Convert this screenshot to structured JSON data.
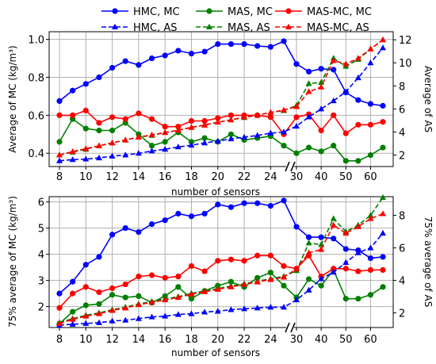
{
  "legend": {
    "items": [
      {
        "label": "HMC, MC",
        "color": "#0000ff",
        "style": "solid",
        "marker": "circle"
      },
      {
        "label": "MAS, MC",
        "color": "#008000",
        "style": "solid",
        "marker": "circle"
      },
      {
        "label": "MAS-MC, MC",
        "color": "#ff0000",
        "style": "solid",
        "marker": "circle"
      },
      {
        "label": "HMC, AS",
        "color": "#0000ff",
        "style": "dashed",
        "marker": "triangle"
      },
      {
        "label": "MAS, AS",
        "color": "#008000",
        "style": "dashed",
        "marker": "triangle"
      },
      {
        "label": "MAS-MC, AS",
        "color": "#ff0000",
        "style": "dashed",
        "marker": "triangle"
      }
    ]
  },
  "colors": {
    "hmc": "#0000ff",
    "mas": "#008000",
    "masmc": "#ff0000",
    "grid": "#b0b0b0"
  },
  "chart_data": [
    {
      "type": "line",
      "xlabel": "number of sensors",
      "ylabel_left": "Average of MC (kg/m³)",
      "ylabel_right": "Average of AS",
      "axis_break": "//",
      "x_tick_labels": [
        "8",
        "10",
        "12",
        "14",
        "16",
        "18",
        "20",
        "22",
        "24",
        "30",
        "40",
        "50",
        "60"
      ],
      "ylim_left": [
        0.33,
        1.04
      ],
      "ylim_right": [
        1.0,
        12.7
      ],
      "y_ticks_left": [
        0.4,
        0.6,
        0.8,
        1.0
      ],
      "y_tick_labels_left": [
        "0.4",
        "0.6",
        "0.8",
        "1.0"
      ],
      "y_ticks_right": [
        2,
        4,
        6,
        8,
        10,
        12
      ],
      "y_tick_labels_right": [
        "2",
        "4",
        "6",
        "8",
        "10",
        "12"
      ],
      "grid": true,
      "legend_position": "top, above plots",
      "x": [
        8,
        9,
        10,
        11,
        12,
        13,
        14,
        15,
        16,
        17,
        18,
        19,
        20,
        21,
        22,
        23,
        24,
        25,
        30,
        35,
        40,
        45,
        50,
        55,
        60,
        65
      ],
      "series": [
        {
          "name": "HMC, MC",
          "axis": "left",
          "values": [
            0.675,
            0.73,
            0.765,
            0.8,
            0.85,
            0.885,
            0.865,
            0.9,
            0.915,
            0.94,
            0.925,
            0.935,
            0.975,
            0.975,
            0.975,
            0.965,
            0.96,
            0.99,
            0.87,
            0.83,
            0.845,
            0.84,
            0.72,
            0.68,
            0.66,
            0.65
          ]
        },
        {
          "name": "MAS, MC",
          "axis": "left",
          "values": [
            0.46,
            0.58,
            0.53,
            0.52,
            0.52,
            0.56,
            0.5,
            0.44,
            0.46,
            0.51,
            0.46,
            0.48,
            0.46,
            0.5,
            0.47,
            0.48,
            0.49,
            0.44,
            0.4,
            0.43,
            0.41,
            0.44,
            0.36,
            0.36,
            0.39,
            0.43
          ]
        },
        {
          "name": "MAS-MC, MC",
          "axis": "left",
          "values": [
            0.6,
            0.6,
            0.625,
            0.56,
            0.59,
            0.58,
            0.61,
            0.58,
            0.54,
            0.54,
            0.57,
            0.57,
            0.585,
            0.6,
            0.6,
            0.6,
            0.59,
            0.5,
            0.59,
            0.605,
            0.52,
            0.6,
            0.505,
            0.55,
            0.55,
            0.565
          ]
        },
        {
          "name": "HMC, AS",
          "axis": "right",
          "values": [
            1.5,
            1.6,
            1.65,
            1.75,
            1.9,
            2.0,
            2.15,
            2.35,
            2.5,
            2.7,
            2.85,
            3.05,
            3.2,
            3.4,
            3.55,
            3.7,
            3.9,
            4.0,
            4.5,
            5.3,
            6.0,
            6.7,
            7.5,
            8.7,
            10.0,
            11.3
          ]
        },
        {
          "name": "MAS, AS",
          "axis": "right",
          "values": [
            2.0,
            2.25,
            2.5,
            2.8,
            3.05,
            3.3,
            3.55,
            3.7,
            3.95,
            4.15,
            4.4,
            4.6,
            4.85,
            5.05,
            5.25,
            5.45,
            5.7,
            5.85,
            6.3,
            8.2,
            8.3,
            10.4,
            9.7,
            10.3,
            11.2,
            12.0
          ]
        },
        {
          "name": "MAS-MC, AS",
          "axis": "right",
          "values": [
            2.0,
            2.3,
            2.55,
            2.8,
            3.05,
            3.3,
            3.55,
            3.75,
            3.95,
            4.15,
            4.4,
            4.6,
            4.85,
            5.05,
            5.3,
            5.45,
            5.7,
            5.9,
            6.2,
            7.5,
            7.9,
            10.2,
            9.9,
            10.4,
            11.2,
            12.0
          ]
        }
      ]
    },
    {
      "type": "line",
      "xlabel": "number of sensors",
      "ylabel_left": "75% average of MC (kg/m³)",
      "ylabel_right": "75% average of AS",
      "axis_break": "//",
      "x_tick_labels": [
        "8",
        "10",
        "12",
        "14",
        "16",
        "18",
        "20",
        "22",
        "24",
        "30",
        "40",
        "50",
        "60"
      ],
      "ylim_left": [
        1.2,
        6.2
      ],
      "ylim_right": [
        1.1,
        9.15
      ],
      "y_ticks_left": [
        2,
        3,
        4,
        5,
        6
      ],
      "y_tick_labels_left": [
        "2",
        "3",
        "4",
        "5",
        "6"
      ],
      "y_ticks_right": [
        2,
        4,
        6,
        8
      ],
      "y_tick_labels_right": [
        "2",
        "4",
        "6",
        "8"
      ],
      "grid": true,
      "x": [
        8,
        9,
        10,
        11,
        12,
        13,
        14,
        15,
        16,
        17,
        18,
        19,
        20,
        21,
        22,
        23,
        24,
        25,
        30,
        35,
        40,
        45,
        50,
        55,
        60,
        65
      ],
      "series": [
        {
          "name": "HMC, MC",
          "axis": "left",
          "values": [
            2.5,
            2.95,
            3.6,
            3.9,
            4.75,
            5.0,
            4.85,
            5.15,
            5.3,
            5.55,
            5.45,
            5.55,
            5.9,
            5.8,
            5.95,
            5.95,
            5.85,
            6.05,
            5.05,
            4.65,
            4.65,
            4.6,
            4.2,
            4.15,
            3.85,
            3.9
          ]
        },
        {
          "name": "MAS, MC",
          "axis": "left",
          "values": [
            1.35,
            1.8,
            2.05,
            2.1,
            2.45,
            2.35,
            2.4,
            2.15,
            2.4,
            2.75,
            2.3,
            2.6,
            2.8,
            2.95,
            2.75,
            3.1,
            3.3,
            2.8,
            2.35,
            3.05,
            2.8,
            3.4,
            2.3,
            2.3,
            2.45,
            2.75
          ]
        },
        {
          "name": "MAS-MC, MC",
          "axis": "left",
          "values": [
            1.95,
            2.5,
            2.75,
            2.55,
            2.7,
            2.85,
            3.15,
            3.2,
            3.1,
            3.15,
            3.55,
            3.35,
            3.75,
            3.8,
            3.75,
            3.95,
            3.95,
            3.55,
            3.45,
            3.95,
            3.15,
            3.45,
            3.45,
            3.35,
            3.4,
            3.4
          ]
        },
        {
          "name": "HMC, AS",
          "axis": "right",
          "values": [
            1.25,
            1.3,
            1.35,
            1.4,
            1.5,
            1.55,
            1.65,
            1.75,
            1.8,
            1.9,
            1.95,
            2.05,
            2.1,
            2.2,
            2.25,
            2.3,
            2.35,
            2.35,
            2.8,
            3.4,
            4.1,
            4.5,
            5.1,
            5.7,
            6.0,
            6.9
          ]
        },
        {
          "name": "MAS, AS",
          "axis": "right",
          "values": [
            1.4,
            1.65,
            1.85,
            2.0,
            2.2,
            2.35,
            2.55,
            2.7,
            2.85,
            3.0,
            3.2,
            3.35,
            3.5,
            3.65,
            3.8,
            3.95,
            4.1,
            4.25,
            4.6,
            6.3,
            6.2,
            7.8,
            7.0,
            7.4,
            8.0,
            9.1
          ]
        },
        {
          "name": "MAS-MC, AS",
          "axis": "right",
          "values": [
            1.35,
            1.6,
            1.8,
            1.95,
            2.15,
            2.3,
            2.5,
            2.65,
            2.8,
            2.95,
            3.15,
            3.3,
            3.45,
            3.6,
            3.75,
            3.9,
            4.05,
            4.2,
            4.7,
            5.7,
            5.9,
            7.4,
            6.9,
            7.3,
            7.8,
            8.1
          ]
        }
      ]
    }
  ]
}
